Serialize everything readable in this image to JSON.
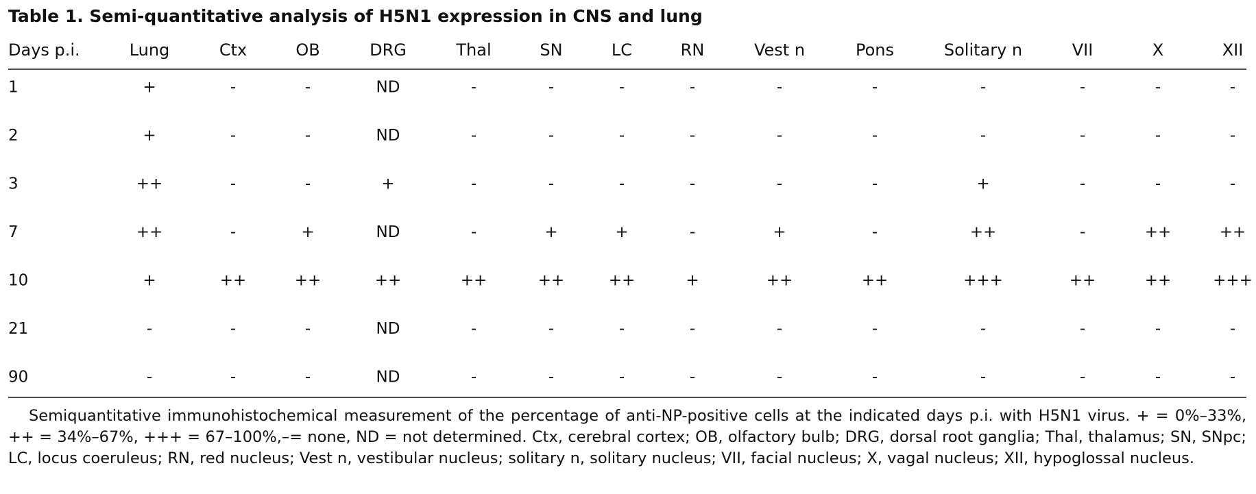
{
  "title": "Table 1. Semi-quantitative analysis of H5N1 expression in CNS and lung",
  "table": {
    "header": [
      "Days p.i.",
      "Lung",
      "Ctx",
      "OB",
      "DRG",
      "Thal",
      "SN",
      "LC",
      "RN",
      "Vest n",
      "Pons",
      "Solitary n",
      "VII",
      "X",
      "XII"
    ],
    "rows": [
      [
        "1",
        "+",
        "-",
        "-",
        "ND",
        "-",
        "-",
        "-",
        "-",
        "-",
        "-",
        "-",
        "-",
        "-",
        "-"
      ],
      [
        "2",
        "+",
        "-",
        "-",
        "ND",
        "-",
        "-",
        "-",
        "-",
        "-",
        "-",
        "-",
        "-",
        "-",
        "-"
      ],
      [
        "3",
        "++",
        "-",
        "-",
        "+",
        "-",
        "-",
        "-",
        "-",
        "-",
        "-",
        "+",
        "-",
        "-",
        "-"
      ],
      [
        "7",
        "++",
        "-",
        "+",
        "ND",
        "-",
        "+",
        "+",
        "-",
        "+",
        "-",
        "++",
        "-",
        "++",
        "++"
      ],
      [
        "10",
        "+",
        "++",
        "++",
        "++",
        "++",
        "++",
        "++",
        "+",
        "++",
        "++",
        "+++",
        "++",
        "++",
        "+++"
      ],
      [
        "21",
        "-",
        "-",
        "-",
        "ND",
        "-",
        "-",
        "-",
        "-",
        "-",
        "-",
        "-",
        "-",
        "-",
        "-"
      ],
      [
        "90",
        "-",
        "-",
        "-",
        "ND",
        "-",
        "-",
        "-",
        "-",
        "-",
        "-",
        "-",
        "-",
        "-",
        "-"
      ]
    ]
  },
  "footnote": "Semiquantitative immunohistochemical measurement of the percentage of anti-NP-positive cells at the indicated days p.i. with H5N1 virus. + = 0%–33%, ++ = 34%–67%, +++ = 67–100%,–= none, ND = not determined. Ctx, cerebral cortex; OB, olfactory bulb; DRG, dorsal root ganglia; Thal, thalamus; SN, SNpc; LC, locus coeruleus; RN, red nucleus; Vest n, vestibular nucleus; solitary n, solitary nucleus; VII, facial nucleus; X, vagal nucleus; XII, hypoglossal nucleus."
}
